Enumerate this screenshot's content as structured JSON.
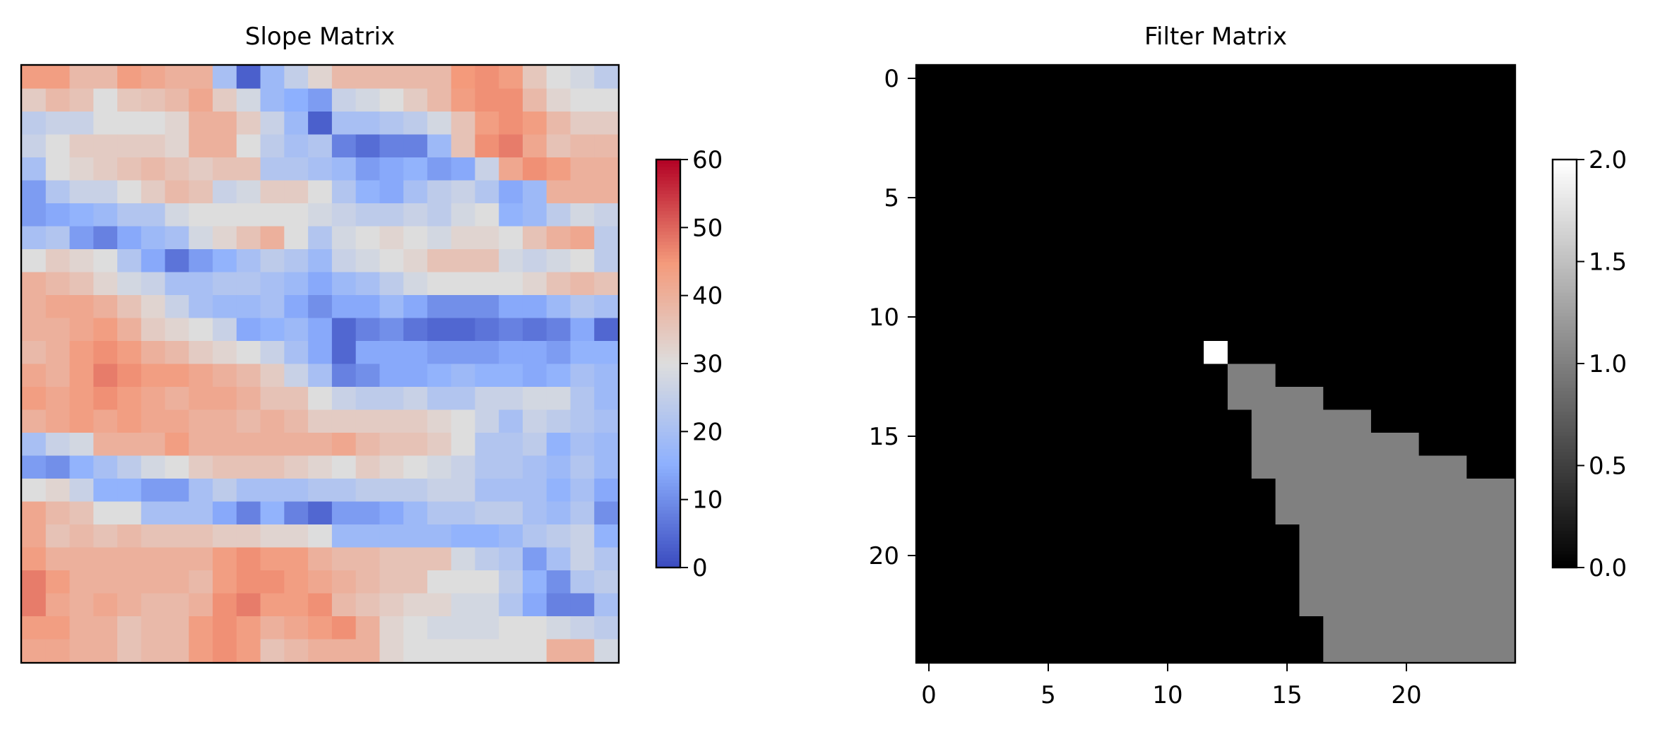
{
  "chart_data": [
    {
      "type": "heatmap",
      "title": "Slope Matrix",
      "colormap": "coolwarm",
      "xticks": [],
      "yticks": [],
      "colorbar": {
        "vmin": 0,
        "vmax": 60,
        "ticks": [
          0,
          10,
          20,
          30,
          40,
          50,
          60
        ]
      },
      "values": [
        [
          44,
          44,
          38,
          38,
          44,
          42,
          40,
          40,
          20,
          3,
          18,
          25,
          32,
          38,
          38,
          38,
          38,
          38,
          45,
          46,
          44,
          35,
          30,
          28,
          24
        ],
        [
          34,
          38,
          36,
          30,
          35,
          36,
          38,
          42,
          34,
          28,
          18,
          15,
          12,
          26,
          28,
          30,
          34,
          38,
          44,
          46,
          46,
          38,
          32,
          30,
          30
        ],
        [
          24,
          26,
          26,
          30,
          30,
          30,
          32,
          40,
          40,
          34,
          26,
          18,
          3,
          20,
          20,
          22,
          24,
          28,
          36,
          44,
          46,
          44,
          38,
          34,
          34
        ],
        [
          26,
          30,
          34,
          34,
          34,
          34,
          32,
          40,
          40,
          30,
          24,
          20,
          22,
          8,
          5,
          8,
          8,
          18,
          36,
          46,
          48,
          42,
          36,
          38,
          38
        ],
        [
          20,
          30,
          32,
          34,
          36,
          38,
          36,
          34,
          36,
          36,
          22,
          22,
          20,
          18,
          12,
          14,
          16,
          12,
          14,
          26,
          42,
          46,
          44,
          40,
          40
        ],
        [
          12,
          22,
          26,
          26,
          30,
          34,
          38,
          36,
          26,
          28,
          34,
          34,
          30,
          22,
          16,
          14,
          20,
          24,
          26,
          22,
          14,
          18,
          40,
          40,
          40
        ],
        [
          12,
          14,
          16,
          18,
          22,
          22,
          28,
          30,
          30,
          30,
          30,
          30,
          28,
          26,
          24,
          24,
          26,
          24,
          28,
          30,
          16,
          18,
          24,
          28,
          26
        ],
        [
          20,
          22,
          12,
          8,
          14,
          18,
          20,
          28,
          32,
          36,
          40,
          30,
          22,
          28,
          30,
          32,
          30,
          28,
          32,
          32,
          30,
          36,
          40,
          42,
          24
        ],
        [
          30,
          34,
          32,
          30,
          22,
          14,
          6,
          12,
          16,
          20,
          24,
          22,
          18,
          26,
          28,
          30,
          32,
          36,
          36,
          36,
          28,
          26,
          28,
          30,
          24
        ],
        [
          40,
          38,
          36,
          32,
          28,
          26,
          20,
          20,
          22,
          22,
          20,
          18,
          14,
          18,
          20,
          24,
          28,
          30,
          30,
          30,
          30,
          32,
          36,
          38,
          36
        ],
        [
          40,
          42,
          42,
          40,
          36,
          32,
          26,
          20,
          18,
          18,
          20,
          14,
          10,
          14,
          14,
          18,
          14,
          10,
          10,
          10,
          14,
          14,
          18,
          22,
          20
        ],
        [
          40,
          40,
          42,
          44,
          40,
          34,
          32,
          30,
          26,
          14,
          16,
          18,
          14,
          4,
          8,
          10,
          6,
          4,
          4,
          6,
          8,
          6,
          8,
          14,
          4
        ],
        [
          38,
          40,
          44,
          46,
          44,
          40,
          38,
          34,
          32,
          30,
          26,
          20,
          14,
          4,
          14,
          14,
          14,
          12,
          12,
          12,
          14,
          14,
          12,
          16,
          16
        ],
        [
          42,
          40,
          44,
          48,
          46,
          44,
          44,
          42,
          40,
          38,
          34,
          26,
          20,
          8,
          10,
          14,
          14,
          16,
          18,
          16,
          16,
          14,
          16,
          20,
          18
        ],
        [
          44,
          42,
          44,
          46,
          44,
          42,
          40,
          42,
          42,
          40,
          36,
          36,
          30,
          26,
          24,
          24,
          26,
          22,
          22,
          26,
          26,
          28,
          28,
          22,
          18
        ],
        [
          40,
          42,
          44,
          42,
          44,
          42,
          42,
          40,
          40,
          38,
          40,
          38,
          34,
          34,
          34,
          34,
          34,
          32,
          30,
          26,
          20,
          26,
          24,
          22,
          20
        ],
        [
          20,
          26,
          28,
          40,
          40,
          40,
          44,
          40,
          40,
          40,
          40,
          40,
          40,
          42,
          38,
          36,
          36,
          34,
          30,
          22,
          22,
          24,
          16,
          20,
          18
        ],
        [
          12,
          10,
          16,
          20,
          24,
          28,
          30,
          34,
          36,
          36,
          36,
          34,
          32,
          30,
          34,
          32,
          30,
          28,
          26,
          22,
          22,
          20,
          18,
          22,
          18
        ],
        [
          30,
          32,
          26,
          16,
          16,
          12,
          12,
          20,
          24,
          20,
          20,
          20,
          22,
          22,
          24,
          24,
          24,
          26,
          26,
          20,
          20,
          20,
          16,
          20,
          14
        ],
        [
          42,
          38,
          36,
          30,
          30,
          20,
          20,
          20,
          14,
          8,
          16,
          8,
          4,
          12,
          12,
          14,
          18,
          22,
          22,
          24,
          24,
          20,
          18,
          22,
          10
        ],
        [
          42,
          36,
          38,
          36,
          38,
          36,
          36,
          36,
          34,
          34,
          32,
          32,
          30,
          18,
          18,
          18,
          18,
          18,
          16,
          16,
          18,
          22,
          24,
          26,
          16
        ],
        [
          44,
          40,
          40,
          40,
          40,
          40,
          40,
          40,
          44,
          46,
          44,
          44,
          40,
          38,
          38,
          36,
          36,
          36,
          28,
          24,
          22,
          12,
          20,
          26,
          22
        ],
        [
          48,
          44,
          40,
          40,
          40,
          40,
          40,
          38,
          44,
          46,
          46,
          44,
          42,
          40,
          38,
          36,
          36,
          30,
          30,
          30,
          24,
          16,
          10,
          22,
          24
        ],
        [
          48,
          42,
          40,
          42,
          40,
          38,
          38,
          40,
          46,
          48,
          44,
          44,
          46,
          38,
          36,
          34,
          32,
          32,
          28,
          28,
          22,
          14,
          8,
          8,
          20
        ],
        [
          44,
          44,
          40,
          40,
          36,
          38,
          38,
          44,
          46,
          44,
          40,
          42,
          44,
          46,
          40,
          32,
          30,
          28,
          28,
          28,
          30,
          30,
          28,
          26,
          24
        ],
        [
          42,
          42,
          40,
          40,
          36,
          38,
          38,
          44,
          46,
          44,
          36,
          38,
          40,
          40,
          40,
          32,
          30,
          30,
          30,
          30,
          30,
          30,
          40,
          40,
          28
        ]
      ]
    },
    {
      "type": "heatmap",
      "title": "Filter Matrix",
      "colormap": "gray",
      "xticks": [
        0,
        5,
        10,
        15,
        20
      ],
      "yticks": [
        0,
        5,
        10,
        15,
        20
      ],
      "colorbar": {
        "vmin": 0.0,
        "vmax": 2.0,
        "ticks": [
          "0.0",
          "0.5",
          "1.0",
          "1.5",
          "2.0"
        ]
      },
      "values": [
        [
          0,
          0,
          0,
          0,
          0,
          0,
          0,
          0,
          0,
          0,
          0,
          0,
          0,
          0,
          0,
          0,
          0,
          0,
          0,
          0,
          0,
          0,
          0,
          0,
          0
        ],
        [
          0,
          0,
          0,
          0,
          0,
          0,
          0,
          0,
          0,
          0,
          0,
          0,
          0,
          0,
          0,
          0,
          0,
          0,
          0,
          0,
          0,
          0,
          0,
          0,
          0
        ],
        [
          0,
          0,
          0,
          0,
          0,
          0,
          0,
          0,
          0,
          0,
          0,
          0,
          0,
          0,
          0,
          0,
          0,
          0,
          0,
          0,
          0,
          0,
          0,
          0,
          0
        ],
        [
          0,
          0,
          0,
          0,
          0,
          0,
          0,
          0,
          0,
          0,
          0,
          0,
          0,
          0,
          0,
          0,
          0,
          0,
          0,
          0,
          0,
          0,
          0,
          0,
          0
        ],
        [
          0,
          0,
          0,
          0,
          0,
          0,
          0,
          0,
          0,
          0,
          0,
          0,
          0,
          0,
          0,
          0,
          0,
          0,
          0,
          0,
          0,
          0,
          0,
          0,
          0
        ],
        [
          0,
          0,
          0,
          0,
          0,
          0,
          0,
          0,
          0,
          0,
          0,
          0,
          0,
          0,
          0,
          0,
          0,
          0,
          0,
          0,
          0,
          0,
          0,
          0,
          0
        ],
        [
          0,
          0,
          0,
          0,
          0,
          0,
          0,
          0,
          0,
          0,
          0,
          0,
          0,
          0,
          0,
          0,
          0,
          0,
          0,
          0,
          0,
          0,
          0,
          0,
          0
        ],
        [
          0,
          0,
          0,
          0,
          0,
          0,
          0,
          0,
          0,
          0,
          0,
          0,
          0,
          0,
          0,
          0,
          0,
          0,
          0,
          0,
          0,
          0,
          0,
          0,
          0
        ],
        [
          0,
          0,
          0,
          0,
          0,
          0,
          0,
          0,
          0,
          0,
          0,
          0,
          0,
          0,
          0,
          0,
          0,
          0,
          0,
          0,
          0,
          0,
          0,
          0,
          0
        ],
        [
          0,
          0,
          0,
          0,
          0,
          0,
          0,
          0,
          0,
          0,
          0,
          0,
          0,
          0,
          0,
          0,
          0,
          0,
          0,
          0,
          0,
          0,
          0,
          0,
          0
        ],
        [
          0,
          0,
          0,
          0,
          0,
          0,
          0,
          0,
          0,
          0,
          0,
          0,
          0,
          0,
          0,
          0,
          0,
          0,
          0,
          0,
          0,
          0,
          0,
          0,
          0
        ],
        [
          0,
          0,
          0,
          0,
          0,
          0,
          0,
          0,
          0,
          0,
          0,
          0,
          0,
          0,
          0,
          0,
          0,
          0,
          0,
          0,
          0,
          0,
          0,
          0,
          0
        ],
        [
          0,
          0,
          0,
          0,
          0,
          0,
          0,
          0,
          0,
          0,
          0,
          0,
          2,
          0,
          0,
          0,
          0,
          0,
          0,
          0,
          0,
          0,
          0,
          0,
          0
        ],
        [
          0,
          0,
          0,
          0,
          0,
          0,
          0,
          0,
          0,
          0,
          0,
          0,
          0,
          1,
          1,
          0,
          0,
          0,
          0,
          0,
          0,
          0,
          0,
          0,
          0
        ],
        [
          0,
          0,
          0,
          0,
          0,
          0,
          0,
          0,
          0,
          0,
          0,
          0,
          0,
          1,
          1,
          1,
          1,
          0,
          0,
          0,
          0,
          0,
          0,
          0,
          0
        ],
        [
          0,
          0,
          0,
          0,
          0,
          0,
          0,
          0,
          0,
          0,
          0,
          0,
          0,
          0,
          1,
          1,
          1,
          1,
          1,
          0,
          0,
          0,
          0,
          0,
          0
        ],
        [
          0,
          0,
          0,
          0,
          0,
          0,
          0,
          0,
          0,
          0,
          0,
          0,
          0,
          0,
          1,
          1,
          1,
          1,
          1,
          1,
          1,
          0,
          0,
          0,
          0
        ],
        [
          0,
          0,
          0,
          0,
          0,
          0,
          0,
          0,
          0,
          0,
          0,
          0,
          0,
          0,
          1,
          1,
          1,
          1,
          1,
          1,
          1,
          1,
          1,
          0,
          0
        ],
        [
          0,
          0,
          0,
          0,
          0,
          0,
          0,
          0,
          0,
          0,
          0,
          0,
          0,
          0,
          0,
          1,
          1,
          1,
          1,
          1,
          1,
          1,
          1,
          1,
          1
        ],
        [
          0,
          0,
          0,
          0,
          0,
          0,
          0,
          0,
          0,
          0,
          0,
          0,
          0,
          0,
          0,
          1,
          1,
          1,
          1,
          1,
          1,
          1,
          1,
          1,
          1
        ],
        [
          0,
          0,
          0,
          0,
          0,
          0,
          0,
          0,
          0,
          0,
          0,
          0,
          0,
          0,
          0,
          0,
          1,
          1,
          1,
          1,
          1,
          1,
          1,
          1,
          1
        ],
        [
          0,
          0,
          0,
          0,
          0,
          0,
          0,
          0,
          0,
          0,
          0,
          0,
          0,
          0,
          0,
          0,
          1,
          1,
          1,
          1,
          1,
          1,
          1,
          1,
          1
        ],
        [
          0,
          0,
          0,
          0,
          0,
          0,
          0,
          0,
          0,
          0,
          0,
          0,
          0,
          0,
          0,
          0,
          1,
          1,
          1,
          1,
          1,
          1,
          1,
          1,
          1
        ],
        [
          0,
          0,
          0,
          0,
          0,
          0,
          0,
          0,
          0,
          0,
          0,
          0,
          0,
          0,
          0,
          0,
          1,
          1,
          1,
          1,
          1,
          1,
          1,
          1,
          1
        ],
        [
          0,
          0,
          0,
          0,
          0,
          0,
          0,
          0,
          0,
          0,
          0,
          0,
          0,
          0,
          0,
          0,
          0,
          1,
          1,
          1,
          1,
          1,
          1,
          1,
          1
        ],
        [
          0,
          0,
          0,
          0,
          0,
          0,
          0,
          0,
          0,
          0,
          0,
          0,
          0,
          0,
          0,
          0,
          0,
          1,
          1,
          1,
          1,
          1,
          1,
          1,
          1
        ]
      ]
    }
  ]
}
